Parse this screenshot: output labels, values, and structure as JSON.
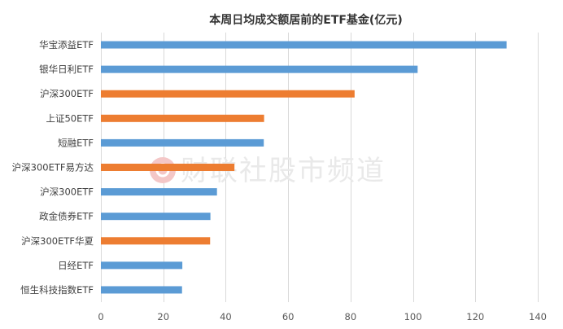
{
  "chart_data": {
    "type": "bar",
    "orientation": "horizontal",
    "title": "本周日均成交额居前的ETF基金(亿元)",
    "categories": [
      "华宝添益ETF",
      "银华日利ETF",
      "沪深300ETF",
      "上证50ETF",
      "短融ETF",
      "沪深300ETF易方达",
      "沪深300ETF",
      "政金债券ETF",
      "沪深300ETF华夏",
      "日经ETF",
      "恒生科技指数ETF"
    ],
    "values": [
      130,
      101.5,
      81.3,
      52.3,
      52.2,
      42.8,
      37.2,
      35.1,
      35.0,
      26.1,
      26.0
    ],
    "colors": [
      "#5b9bd5",
      "#5b9bd5",
      "#ed7d31",
      "#ed7d31",
      "#5b9bd5",
      "#ed7d31",
      "#5b9bd5",
      "#5b9bd5",
      "#ed7d31",
      "#5b9bd5",
      "#5b9bd5"
    ],
    "xlim": [
      0,
      140
    ],
    "xticks": [
      0,
      20,
      40,
      60,
      80,
      100,
      120,
      140
    ],
    "grid": "vertical",
    "legend": "none"
  },
  "watermark": {
    "text": "财联社股市频道",
    "color": "#f4c7c7"
  }
}
